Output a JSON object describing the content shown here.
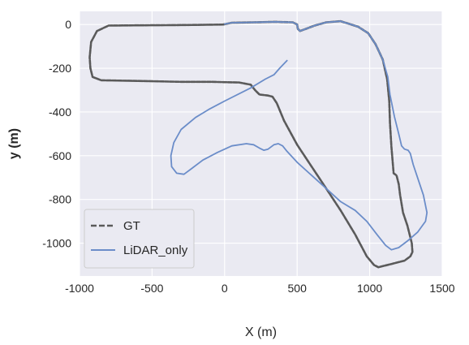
{
  "chart_data": {
    "type": "line",
    "title": "",
    "xlabel": "X (m)",
    "ylabel": "y (m)",
    "xlim": [
      -1000,
      1500
    ],
    "ylim": [
      -1150,
      60
    ],
    "xticks": [
      -1000,
      -500,
      0,
      500,
      1000,
      1500
    ],
    "yticks": [
      0,
      -200,
      -400,
      -600,
      -800,
      -1000
    ],
    "grid": true,
    "legend_position": "lower-left",
    "series": [
      {
        "name": "GT",
        "style": "dashed",
        "color": "#5a5a5a",
        "points": [
          [
            -10,
            0
          ],
          [
            -200,
            -2
          ],
          [
            -400,
            -3
          ],
          [
            -600,
            -4
          ],
          [
            -800,
            -5
          ],
          [
            -880,
            -30
          ],
          [
            -920,
            -80
          ],
          [
            -930,
            -150
          ],
          [
            -925,
            -200
          ],
          [
            -910,
            -240
          ],
          [
            -850,
            -255
          ],
          [
            -600,
            -258
          ],
          [
            -300,
            -262
          ],
          [
            -100,
            -262
          ],
          [
            100,
            -265
          ],
          [
            180,
            -275
          ],
          [
            210,
            -300
          ],
          [
            240,
            -320
          ],
          [
            300,
            -325
          ],
          [
            330,
            -330
          ],
          [
            360,
            -360
          ],
          [
            410,
            -440
          ],
          [
            500,
            -550
          ],
          [
            600,
            -650
          ],
          [
            700,
            -750
          ],
          [
            800,
            -850
          ],
          [
            900,
            -960
          ],
          [
            980,
            -1060
          ],
          [
            1030,
            -1100
          ],
          [
            1060,
            -1110
          ],
          [
            1150,
            -1095
          ],
          [
            1240,
            -1080
          ],
          [
            1280,
            -1060
          ],
          [
            1295,
            -1040
          ],
          [
            1290,
            -1000
          ],
          [
            1260,
            -920
          ],
          [
            1230,
            -860
          ],
          [
            1210,
            -780
          ],
          [
            1200,
            -730
          ],
          [
            1185,
            -690
          ],
          [
            1165,
            -680
          ],
          [
            1150,
            -560
          ],
          [
            1140,
            -450
          ],
          [
            1135,
            -350
          ],
          [
            1120,
            -250
          ],
          [
            1090,
            -160
          ],
          [
            1040,
            -90
          ],
          [
            990,
            -40
          ],
          [
            920,
            -10
          ],
          [
            800,
            15
          ],
          [
            700,
            10
          ],
          [
            620,
            -5
          ],
          [
            560,
            -20
          ],
          [
            520,
            -30
          ],
          [
            505,
            -20
          ],
          [
            500,
            0
          ],
          [
            470,
            10
          ],
          [
            350,
            12
          ],
          [
            200,
            10
          ],
          [
            50,
            8
          ],
          [
            -10,
            0
          ]
        ]
      },
      {
        "name": "LiDAR_only",
        "style": "solid",
        "color": "#6b8dc9",
        "points": [
          [
            430,
            -165
          ],
          [
            380,
            -200
          ],
          [
            340,
            -230
          ],
          [
            280,
            -250
          ],
          [
            180,
            -290
          ],
          [
            0,
            -350
          ],
          [
            -100,
            -385
          ],
          [
            -200,
            -425
          ],
          [
            -300,
            -480
          ],
          [
            -350,
            -540
          ],
          [
            -370,
            -600
          ],
          [
            -365,
            -650
          ],
          [
            -330,
            -680
          ],
          [
            -280,
            -685
          ],
          [
            -230,
            -660
          ],
          [
            -150,
            -620
          ],
          [
            -50,
            -585
          ],
          [
            50,
            -555
          ],
          [
            150,
            -545
          ],
          [
            200,
            -550
          ],
          [
            240,
            -565
          ],
          [
            270,
            -575
          ],
          [
            300,
            -570
          ],
          [
            340,
            -550
          ],
          [
            370,
            -545
          ],
          [
            400,
            -555
          ],
          [
            430,
            -580
          ],
          [
            500,
            -630
          ],
          [
            600,
            -690
          ],
          [
            700,
            -750
          ],
          [
            800,
            -810
          ],
          [
            900,
            -850
          ],
          [
            980,
            -900
          ],
          [
            1050,
            -960
          ],
          [
            1110,
            -1010
          ],
          [
            1150,
            -1030
          ],
          [
            1200,
            -1020
          ],
          [
            1260,
            -990
          ],
          [
            1330,
            -950
          ],
          [
            1385,
            -900
          ],
          [
            1395,
            -860
          ],
          [
            1370,
            -780
          ],
          [
            1330,
            -700
          ],
          [
            1300,
            -640
          ],
          [
            1280,
            -590
          ],
          [
            1265,
            -575
          ],
          [
            1240,
            -570
          ],
          [
            1220,
            -555
          ],
          [
            1200,
            -500
          ],
          [
            1170,
            -420
          ],
          [
            1140,
            -320
          ],
          [
            1125,
            -240
          ],
          [
            1090,
            -160
          ],
          [
            1040,
            -90
          ],
          [
            990,
            -40
          ],
          [
            920,
            -10
          ],
          [
            800,
            15
          ],
          [
            700,
            10
          ],
          [
            620,
            -5
          ],
          [
            560,
            -20
          ],
          [
            520,
            -30
          ],
          [
            505,
            -20
          ],
          [
            500,
            0
          ],
          [
            470,
            10
          ],
          [
            350,
            12
          ],
          [
            200,
            10
          ],
          [
            50,
            8
          ],
          [
            0,
            2
          ]
        ]
      }
    ]
  }
}
